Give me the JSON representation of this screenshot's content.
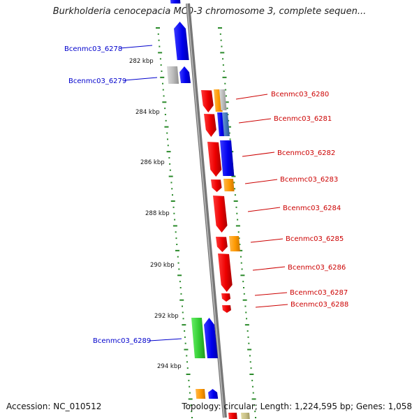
{
  "title": "Burkholderia cenocepacia MC0-3 chromosome 3, complete sequen...",
  "footer": {
    "accession": "Accession: NC_010512",
    "summary": "Topology: circular; Length: 1,224,595 bp; Genes: 1,058"
  },
  "colors": {
    "forward_label": "#0000cc",
    "reverse_label": "#cc0000",
    "backbone": "#8c8c8c",
    "tick_dots": "#2a8a2a",
    "gene_blue": "#0000ee",
    "gene_red": "#ee0000",
    "gene_orange": "#ff9900",
    "gene_gray": "#b8b8b8",
    "gene_green": "#33cc33",
    "gene_steelblue": "#4477bb",
    "gene_khaki": "#c8c088"
  },
  "scale_labels": [
    "282 kbp",
    "284 kbp",
    "286 kbp",
    "288 kbp",
    "290 kbp",
    "292 kbp",
    "294 kbp"
  ],
  "gene_labels": {
    "forward": [
      "Bcenmc03_6278",
      "Bcenmc03_6279",
      "Bcenmc03_6289"
    ],
    "reverse": [
      "Bcenmc03_6280",
      "Bcenmc03_6281",
      "Bcenmc03_6282",
      "Bcenmc03_6283",
      "Bcenmc03_6284",
      "Bcenmc03_6285",
      "Bcenmc03_6286",
      "Bcenmc03_6287",
      "Bcenmc03_6288"
    ]
  }
}
